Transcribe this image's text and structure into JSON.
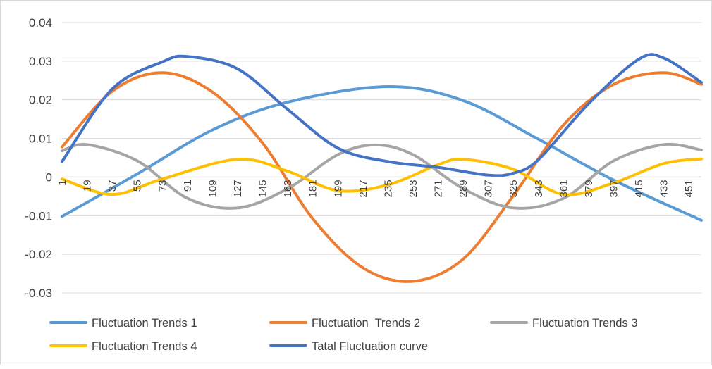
{
  "chart_data": {
    "type": "line",
    "title": "",
    "xlabel": "",
    "ylabel": "",
    "x_tick_labels": [
      "1",
      "19",
      "37",
      "55",
      "73",
      "91",
      "109",
      "127",
      "145",
      "163",
      "181",
      "199",
      "217",
      "235",
      "253",
      "271",
      "289",
      "307",
      "325",
      "343",
      "361",
      "379",
      "397",
      "415",
      "433",
      "451"
    ],
    "xlim": [
      1,
      460
    ],
    "ylim": [
      -0.03,
      0.04
    ],
    "y_tick_labels": [
      "0.04",
      "0.03",
      "0.02",
      "0.01",
      "0",
      "-0.01",
      "-0.02",
      "-0.03"
    ],
    "y_tick_values": [
      0.04,
      0.03,
      0.02,
      0.01,
      0,
      -0.01,
      -0.02,
      -0.03
    ],
    "grid": "horizontal",
    "legend_position": "bottom",
    "series": [
      {
        "name": "Fluctuation Trends 1",
        "color": "#5B9BD5",
        "points": [
          [
            1,
            -0.0102
          ],
          [
            55,
            0.0008
          ],
          [
            109,
            0.0122
          ],
          [
            163,
            0.0194
          ],
          [
            235,
            0.0234
          ],
          [
            289,
            0.0198
          ],
          [
            343,
            0.0098
          ],
          [
            397,
            -0.0008
          ],
          [
            460,
            -0.0112
          ]
        ]
      },
      {
        "name": "Fluctuation  Trends 2",
        "color": "#ED7D31",
        "points": [
          [
            1,
            0.0078
          ],
          [
            37,
            0.0222
          ],
          [
            73,
            0.027
          ],
          [
            109,
            0.022
          ],
          [
            145,
            0.0088
          ],
          [
            181,
            -0.0108
          ],
          [
            217,
            -0.0235
          ],
          [
            253,
            -0.027
          ],
          [
            289,
            -0.0212
          ],
          [
            325,
            -0.0048
          ],
          [
            361,
            0.0135
          ],
          [
            397,
            0.024
          ],
          [
            433,
            0.027
          ],
          [
            460,
            0.024
          ]
        ]
      },
      {
        "name": "Fluctuation Trends 3",
        "color": "#A5A5A5",
        "points": [
          [
            1,
            0.0068
          ],
          [
            19,
            0.0084
          ],
          [
            55,
            0.0042
          ],
          [
            91,
            -0.0055
          ],
          [
            127,
            -0.008
          ],
          [
            163,
            -0.003
          ],
          [
            199,
            0.0058
          ],
          [
            226,
            0.0083
          ],
          [
            253,
            0.0058
          ],
          [
            289,
            -0.003
          ],
          [
            325,
            -0.008
          ],
          [
            361,
            -0.0055
          ],
          [
            397,
            0.0042
          ],
          [
            433,
            0.0084
          ],
          [
            460,
            0.007
          ]
        ]
      },
      {
        "name": "Fluctuation Trends 4",
        "color": "#FFC000",
        "points": [
          [
            1,
            -0.0005
          ],
          [
            37,
            -0.0045
          ],
          [
            73,
            -0.0005
          ],
          [
            127,
            0.0046
          ],
          [
            163,
            0.0015
          ],
          [
            199,
            -0.0035
          ],
          [
            235,
            -0.002
          ],
          [
            271,
            0.0032
          ],
          [
            289,
            0.0046
          ],
          [
            325,
            0.002
          ],
          [
            361,
            -0.0045
          ],
          [
            397,
            -0.0015
          ],
          [
            433,
            0.0035
          ],
          [
            460,
            0.0047
          ]
        ]
      },
      {
        "name": "Tatal Fluctuation curve",
        "color": "#4472C4",
        "points": [
          [
            1,
            0.004
          ],
          [
            37,
            0.0228
          ],
          [
            73,
            0.0298
          ],
          [
            91,
            0.0312
          ],
          [
            127,
            0.028
          ],
          [
            163,
            0.0175
          ],
          [
            199,
            0.0075
          ],
          [
            235,
            0.004
          ],
          [
            271,
            0.0025
          ],
          [
            307,
            0.0005
          ],
          [
            325,
            0.001
          ],
          [
            343,
            0.0045
          ],
          [
            379,
            0.019
          ],
          [
            415,
            0.0305
          ],
          [
            433,
            0.0308
          ],
          [
            460,
            0.0245
          ]
        ]
      }
    ]
  }
}
